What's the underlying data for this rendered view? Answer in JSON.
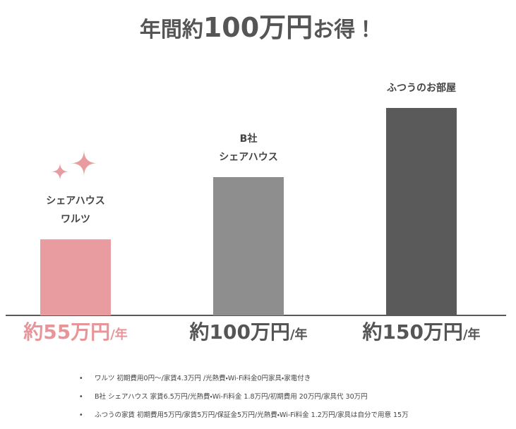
{
  "chart_data": {
    "type": "bar",
    "title": {
      "lead": "年間約",
      "emphasis": "100万円",
      "tail": "お得！"
    },
    "categories": [
      "シェアハウス\nワルツ",
      "B社\nシェアハウス",
      "ふつうのお部屋"
    ],
    "values": [
      55,
      100,
      150
    ],
    "value_labels": [
      "約55万円",
      "約100万円",
      "約150万円"
    ],
    "value_label_suffix": "/年",
    "colors": [
      "#e89ca0",
      "#8e8e8e",
      "#5a5a5a"
    ],
    "value_label_colors": [
      "#e8959a",
      "#555555",
      "#555555"
    ],
    "ylim": [
      0,
      150
    ],
    "notes": [
      "ワルツ 初期費用0円〜/家賃4.3万円 /光熱費・Wi-Fi料金0円家具・家電付き",
      "B社 シェアハウス 家賃6.5万円/光熱費・Wi-Fi料金 1.8万円/初期費用 20万円/家具代 30万円",
      "ふつうの家賃 初期費用5万円/家賃5万円/保証金5万円/光熱費・Wi-Fi料金 1.2万円/家具は自分で用意 15万"
    ]
  }
}
